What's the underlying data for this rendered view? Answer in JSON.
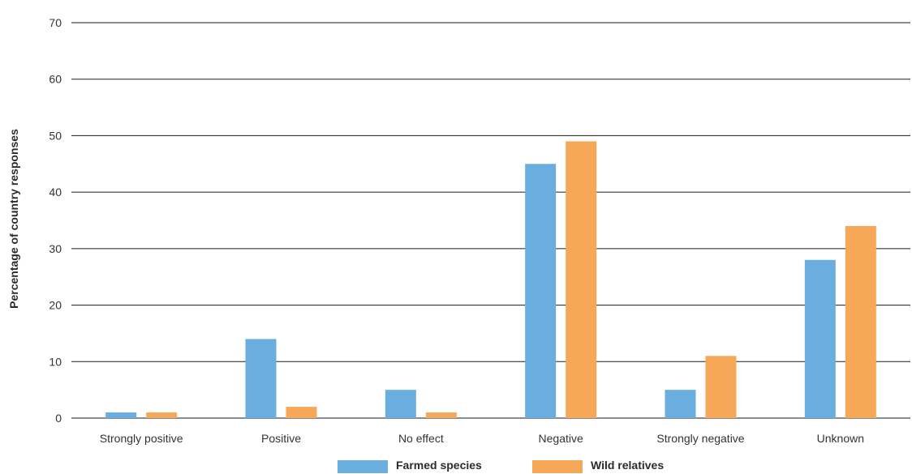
{
  "chart_data": {
    "type": "bar",
    "title": "",
    "xlabel": "",
    "ylabel": "Percentage of country responses",
    "ylim": [
      0,
      70
    ],
    "yticks": [
      0,
      10,
      20,
      30,
      40,
      50,
      60,
      70
    ],
    "grid": true,
    "legend_position": "bottom",
    "categories": [
      "Strongly positive",
      "Positive",
      "No effect",
      "Negative",
      "Strongly negative",
      "Unknown"
    ],
    "series": [
      {
        "name": "Farmed species",
        "color": "#6aaee0",
        "values": [
          1,
          14,
          5,
          45,
          5,
          28
        ]
      },
      {
        "name": "Wild relatives",
        "color": "#f7a758",
        "values": [
          1,
          2,
          1,
          49,
          11,
          34
        ]
      }
    ]
  }
}
